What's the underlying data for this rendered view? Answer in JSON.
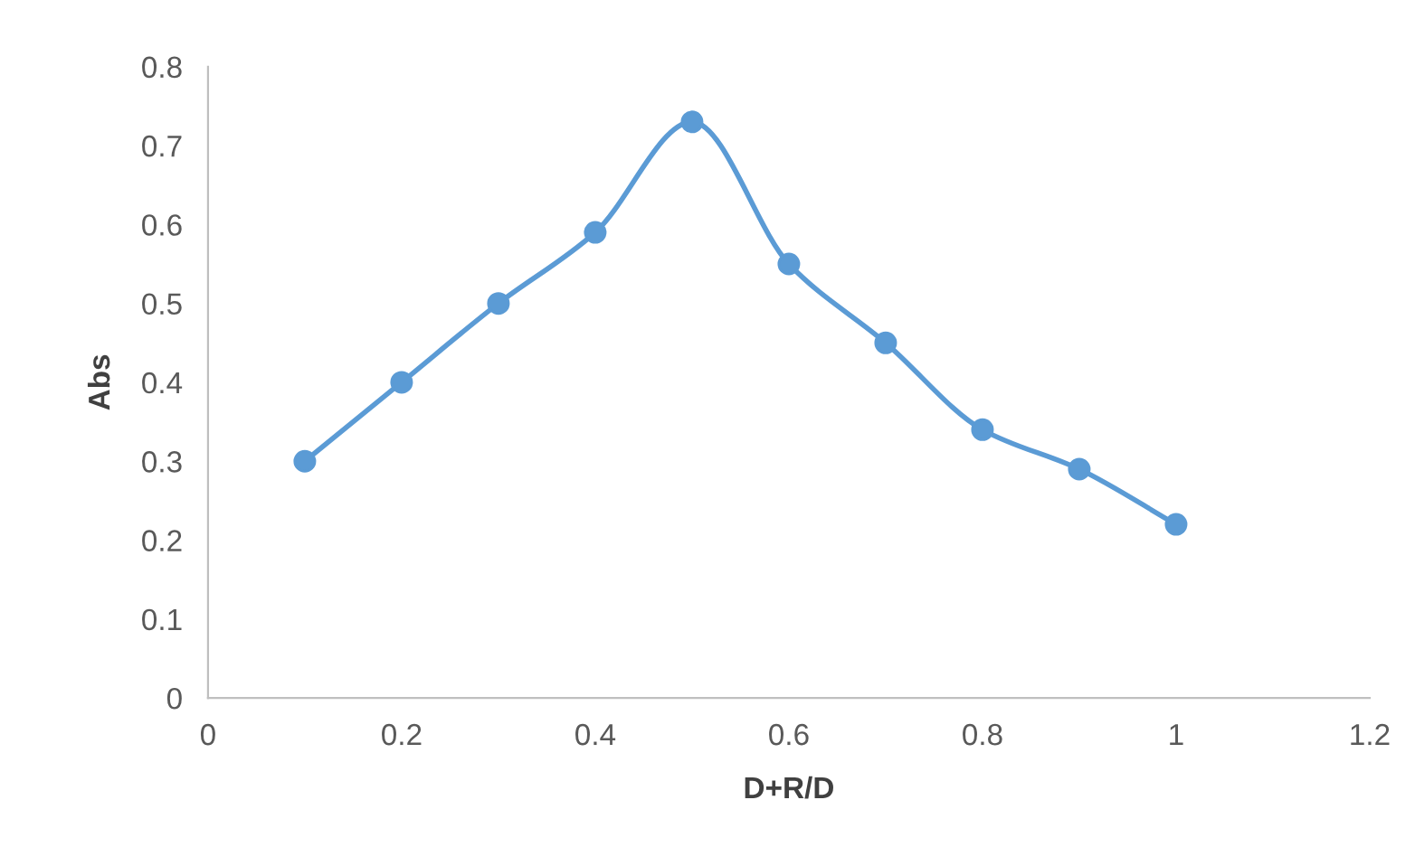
{
  "chart_data": {
    "type": "line",
    "xlabel": "D+R/D",
    "ylabel": "Abs",
    "x": [
      0.1,
      0.2,
      0.3,
      0.4,
      0.5,
      0.6,
      0.7,
      0.8,
      0.9,
      1.0
    ],
    "series": [
      {
        "color": "#5b9bd5",
        "values": [
          0.3,
          0.4,
          0.5,
          0.59,
          0.73,
          0.55,
          0.45,
          0.34,
          0.29,
          0.22
        ]
      }
    ],
    "xlim": [
      0,
      1.2
    ],
    "xticks": [
      0,
      0.2,
      0.4,
      0.6,
      0.8,
      1,
      1.2
    ],
    "ylim": [
      0,
      0.8
    ],
    "yticks": [
      0,
      0.1,
      0.2,
      0.3,
      0.4,
      0.5,
      0.6,
      0.7,
      0.8
    ],
    "grid": false,
    "marker": "circle",
    "line_style": "solid"
  }
}
